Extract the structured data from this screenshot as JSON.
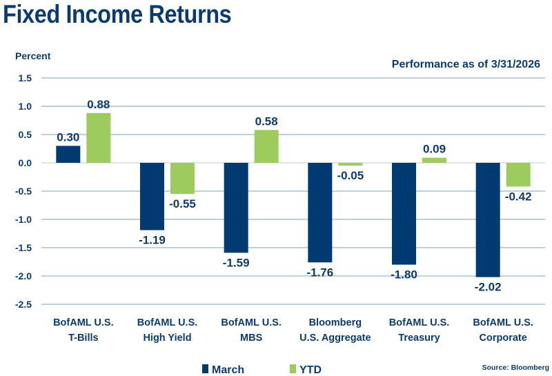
{
  "title": "Fixed Income Returns",
  "chart_data": {
    "type": "bar",
    "title": "Fixed Income Returns",
    "subtitle": "Performance as of 3/31/2026",
    "ylabel": "Percent",
    "xlabel": "",
    "ylim": [
      -2.5,
      1.5
    ],
    "yticks": [
      "1.5",
      "1.0",
      "0.5",
      "0.0",
      "-0.5",
      "-1.0",
      "-1.5",
      "-2.0",
      "-2.5"
    ],
    "grid": true,
    "legend_placement": "bottom",
    "categories": [
      [
        "BofAML U.S.",
        "T-Bills"
      ],
      [
        "BofAML U.S.",
        "High Yield"
      ],
      [
        "BofAML U.S.",
        "MBS"
      ],
      [
        "Bloomberg",
        "U.S. Aggregate"
      ],
      [
        "BofAML U.S.",
        "Treasury"
      ],
      [
        "BofAML U.S.",
        "Corporate"
      ]
    ],
    "series": [
      {
        "name": "March",
        "color": "#003a70",
        "values": [
          0.3,
          -1.19,
          -1.59,
          -1.76,
          -1.8,
          -2.02
        ],
        "labels": [
          "0.30",
          "-1.19",
          "-1.59",
          "-1.76",
          "-1.80",
          "-2.02"
        ]
      },
      {
        "name": "YTD",
        "color": "#9dcb5e",
        "values": [
          0.88,
          -0.55,
          0.58,
          -0.05,
          0.09,
          -0.42
        ],
        "labels": [
          "0.88",
          "-0.55",
          "0.58",
          "-0.05",
          "0.09",
          "-0.42"
        ]
      }
    ],
    "source": "Source: Bloomberg"
  }
}
